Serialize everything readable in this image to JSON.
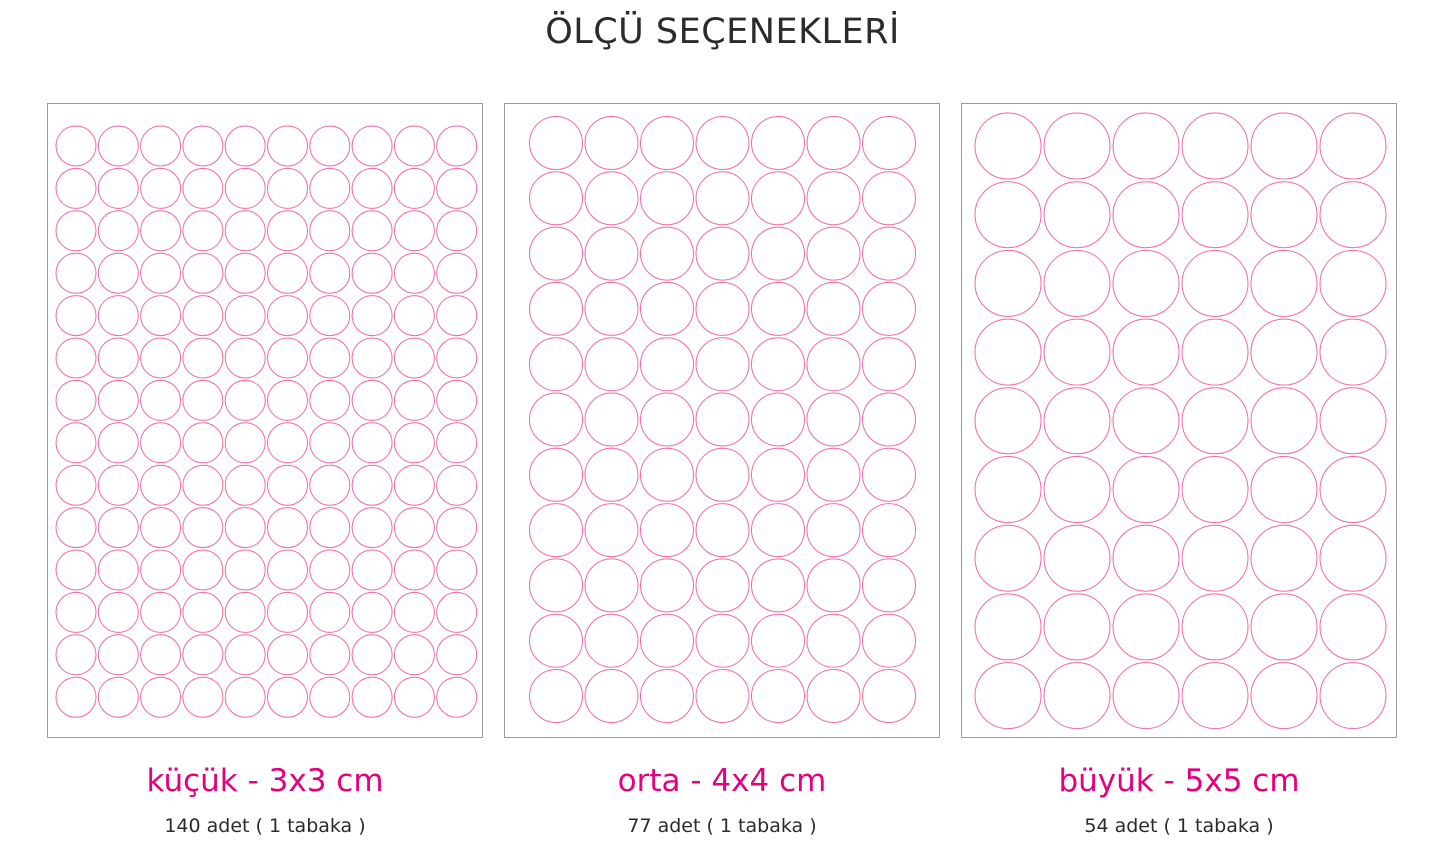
{
  "title": "ÖLÇÜ SEÇENEKLERİ",
  "accent_color": "#e5007e",
  "circle_color": "#f06aa8",
  "options": [
    {
      "label": "küçük - 3x3 cm",
      "count_text": "140 adet ( 1 tabaka )",
      "columns": 10,
      "rows": 14
    },
    {
      "label": "orta - 4x4 cm",
      "count_text": "77 adet ( 1 tabaka )",
      "columns": 7,
      "rows": 11
    },
    {
      "label": "büyük - 5x5 cm",
      "count_text": "54 adet ( 1 tabaka )",
      "columns": 6,
      "rows": 9
    }
  ]
}
